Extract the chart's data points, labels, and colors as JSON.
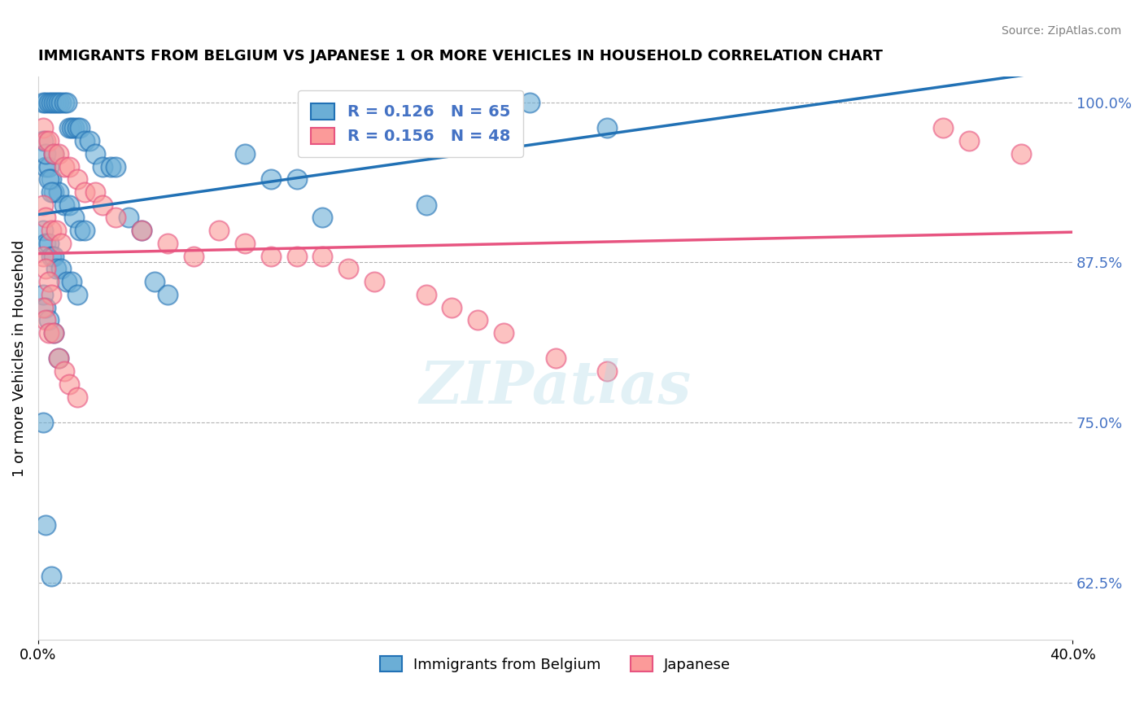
{
  "title": "IMMIGRANTS FROM BELGIUM VS JAPANESE 1 OR MORE VEHICLES IN HOUSEHOLD CORRELATION CHART",
  "source": "Source: ZipAtlas.com",
  "xlabel": "",
  "ylabel": "1 or more Vehicles in Household",
  "xlim": [
    0.0,
    0.4
  ],
  "ylim": [
    0.58,
    1.02
  ],
  "yticks": [
    0.625,
    0.75,
    0.875,
    1.0
  ],
  "ytick_labels": [
    "62.5%",
    "75.0%",
    "87.5%",
    "100.0%"
  ],
  "xtick_labels": [
    "0.0%",
    "40.0%"
  ],
  "xticks": [
    0.0,
    0.4
  ],
  "blue_R": 0.126,
  "blue_N": 65,
  "pink_R": 0.156,
  "pink_N": 48,
  "blue_color": "#6baed6",
  "pink_color": "#fb9a99",
  "blue_line_color": "#2171b5",
  "pink_line_color": "#e75480",
  "legend_label_blue": "Immigrants from Belgium",
  "legend_label_pink": "Japanese",
  "blue_x": [
    0.002,
    0.003,
    0.004,
    0.005,
    0.006,
    0.007,
    0.008,
    0.009,
    0.01,
    0.011,
    0.012,
    0.013,
    0.014,
    0.015,
    0.016,
    0.018,
    0.02,
    0.022,
    0.025,
    0.028,
    0.003,
    0.004,
    0.005,
    0.006,
    0.008,
    0.01,
    0.012,
    0.014,
    0.016,
    0.018,
    0.002,
    0.003,
    0.004,
    0.005,
    0.006,
    0.007,
    0.009,
    0.011,
    0.013,
    0.015,
    0.002,
    0.003,
    0.004,
    0.006,
    0.008,
    0.03,
    0.035,
    0.04,
    0.045,
    0.05,
    0.002,
    0.003,
    0.004,
    0.005,
    0.006,
    0.08,
    0.09,
    0.1,
    0.11,
    0.15,
    0.002,
    0.003,
    0.005,
    0.19,
    0.22
  ],
  "blue_y": [
    1.0,
    1.0,
    1.0,
    1.0,
    1.0,
    1.0,
    1.0,
    1.0,
    1.0,
    1.0,
    0.98,
    0.98,
    0.98,
    0.98,
    0.98,
    0.97,
    0.97,
    0.96,
    0.95,
    0.95,
    0.95,
    0.95,
    0.94,
    0.93,
    0.93,
    0.92,
    0.92,
    0.91,
    0.9,
    0.9,
    0.9,
    0.89,
    0.89,
    0.88,
    0.88,
    0.87,
    0.87,
    0.86,
    0.86,
    0.85,
    0.85,
    0.84,
    0.83,
    0.82,
    0.8,
    0.95,
    0.91,
    0.9,
    0.86,
    0.85,
    0.97,
    0.96,
    0.94,
    0.93,
    0.96,
    0.96,
    0.94,
    0.94,
    0.91,
    0.92,
    0.75,
    0.67,
    0.63,
    1.0,
    0.98
  ],
  "pink_x": [
    0.002,
    0.003,
    0.004,
    0.006,
    0.008,
    0.01,
    0.012,
    0.015,
    0.018,
    0.022,
    0.002,
    0.003,
    0.005,
    0.007,
    0.009,
    0.025,
    0.03,
    0.04,
    0.05,
    0.06,
    0.002,
    0.003,
    0.004,
    0.005,
    0.07,
    0.08,
    0.09,
    0.1,
    0.002,
    0.003,
    0.004,
    0.006,
    0.008,
    0.01,
    0.012,
    0.015,
    0.11,
    0.12,
    0.13,
    0.15,
    0.16,
    0.17,
    0.18,
    0.2,
    0.22,
    0.35,
    0.36,
    0.38
  ],
  "pink_y": [
    0.98,
    0.97,
    0.97,
    0.96,
    0.96,
    0.95,
    0.95,
    0.94,
    0.93,
    0.93,
    0.92,
    0.91,
    0.9,
    0.9,
    0.89,
    0.92,
    0.91,
    0.9,
    0.89,
    0.88,
    0.88,
    0.87,
    0.86,
    0.85,
    0.9,
    0.89,
    0.88,
    0.88,
    0.84,
    0.83,
    0.82,
    0.82,
    0.8,
    0.79,
    0.78,
    0.77,
    0.88,
    0.87,
    0.86,
    0.85,
    0.84,
    0.83,
    0.82,
    0.8,
    0.79,
    0.98,
    0.97,
    0.96
  ]
}
